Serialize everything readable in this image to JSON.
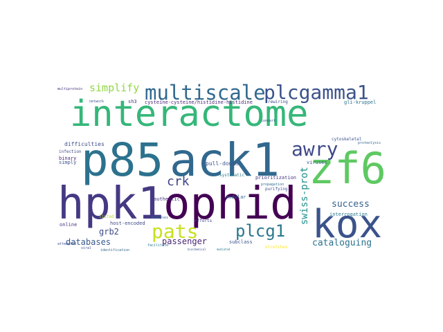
{
  "words": [
    {
      "id": "interactome",
      "text": "interactome",
      "color": "#35b779"
    },
    {
      "id": "p85",
      "text": "p85",
      "color": "#2c728e"
    },
    {
      "id": "ack1",
      "text": "ack1",
      "color": "#31688e"
    },
    {
      "id": "zf6",
      "text": "zf6",
      "color": "#5ec962"
    },
    {
      "id": "hpk1",
      "text": "hpk1",
      "color": "#443a83"
    },
    {
      "id": "ophid",
      "text": "ophid",
      "color": "#440154"
    },
    {
      "id": "kox",
      "text": "kox",
      "color": "#3b528b"
    },
    {
      "id": "multiscale",
      "text": "multiscale",
      "color": "#31688e"
    },
    {
      "id": "plcgamma1",
      "text": "plcgamma1",
      "color": "#3b528b"
    },
    {
      "id": "awry",
      "text": "awry",
      "color": "#3e4989"
    },
    {
      "id": "simplify",
      "text": "simplify",
      "color": "#8fd744"
    },
    {
      "id": "crk",
      "text": "crk",
      "color": "#414487"
    },
    {
      "id": "pats",
      "text": "pats",
      "color": "#c8e020"
    },
    {
      "id": "plcg1",
      "text": "plcg1",
      "color": "#2a788e"
    },
    {
      "id": "swiss-prot",
      "text": "swiss-prot",
      "color": "#21918c"
    },
    {
      "id": "success",
      "text": "success",
      "color": "#35608d"
    },
    {
      "id": "databases",
      "text": "databases",
      "color": "#38598c"
    },
    {
      "id": "cataloguing",
      "text": "cataloguing",
      "color": "#2c728e"
    },
    {
      "id": "grb2",
      "text": "grb2",
      "color": "#3e4989"
    },
    {
      "id": "passenger",
      "text": "passenger",
      "color": "#482475"
    },
    {
      "id": "cysteine",
      "text": "cysteine-cysteine/histidine-histidine",
      "color": "#482878"
    },
    {
      "id": "difficulties",
      "text": "difficulties",
      "color": "#3e4a89"
    },
    {
      "id": "pull-downs",
      "text": "pull-downs",
      "color": "#3b528b"
    },
    {
      "id": "interrogation",
      "text": "interrogation",
      "color": "#2a788e"
    },
    {
      "id": "host-encoded",
      "text": "host-encoded",
      "color": "#3e4989"
    },
    {
      "id": "authentic",
      "text": "authentic",
      "color": "#46337e"
    },
    {
      "id": "modular",
      "text": "modular",
      "color": "#31688e"
    },
    {
      "id": "prioritization",
      "text": "prioritization",
      "color": "#453581"
    },
    {
      "id": "viruses",
      "text": "viruses",
      "color": "#3b528b"
    },
    {
      "id": "systematic",
      "text": "systematic",
      "color": "#2a788e"
    },
    {
      "id": "purifying",
      "text": "purifying",
      "color": "#3b528b"
    },
    {
      "id": "subclass",
      "text": "subclass",
      "color": "#3b528b"
    },
    {
      "id": "simply",
      "text": "simply",
      "color": "#3b528b"
    },
    {
      "id": "binary",
      "text": "binary",
      "color": "#482475"
    },
    {
      "id": "infection",
      "text": "infection",
      "color": "#3e4989"
    },
    {
      "id": "online",
      "text": "online",
      "color": "#46327e"
    },
    {
      "id": "rewiring",
      "text": "rewiring",
      "color": "#3e4989"
    },
    {
      "id": "gli-kruppel",
      "text": "gli-kruppel",
      "color": "#2c728e"
    },
    {
      "id": "multiprotein",
      "text": "multiprotein",
      "color": "#46327e"
    },
    {
      "id": "network",
      "text": "network",
      "color": "#3b528b"
    },
    {
      "id": "sh3",
      "text": "sh3",
      "color": "#443983"
    },
    {
      "id": "analyses",
      "text": "analyses",
      "color": "#31688e"
    },
    {
      "id": "efforts",
      "text": "efforts",
      "color": "#453781"
    },
    {
      "id": "stretches",
      "text": "stretches",
      "color": "#fde725"
    },
    {
      "id": "propagation",
      "text": "propagation",
      "color": "#31688e"
    },
    {
      "id": "cytoskeletal",
      "text": "cytoskeletal",
      "color": "#3b528b"
    },
    {
      "id": "proteolysis",
      "text": "proteolysis",
      "color": "#31688e"
    },
    {
      "id": "concert",
      "text": "concert",
      "color": "#3b528b"
    },
    {
      "id": "identification",
      "text": "identification",
      "color": "#31688e"
    },
    {
      "id": "attempted",
      "text": "attempted",
      "color": "#3b528b"
    },
    {
      "id": "viral",
      "text": "viral",
      "color": "#3b528b"
    },
    {
      "id": "facilitate",
      "text": "facilitate",
      "color": "#2a788e"
    },
    {
      "id": "biochemical",
      "text": "biochemical",
      "color": "#3b528b"
    },
    {
      "id": "listed",
      "text": "listed",
      "color": "#b5de2b"
    },
    {
      "id": "mediated",
      "text": "mediated",
      "color": "#2a788e"
    }
  ]
}
